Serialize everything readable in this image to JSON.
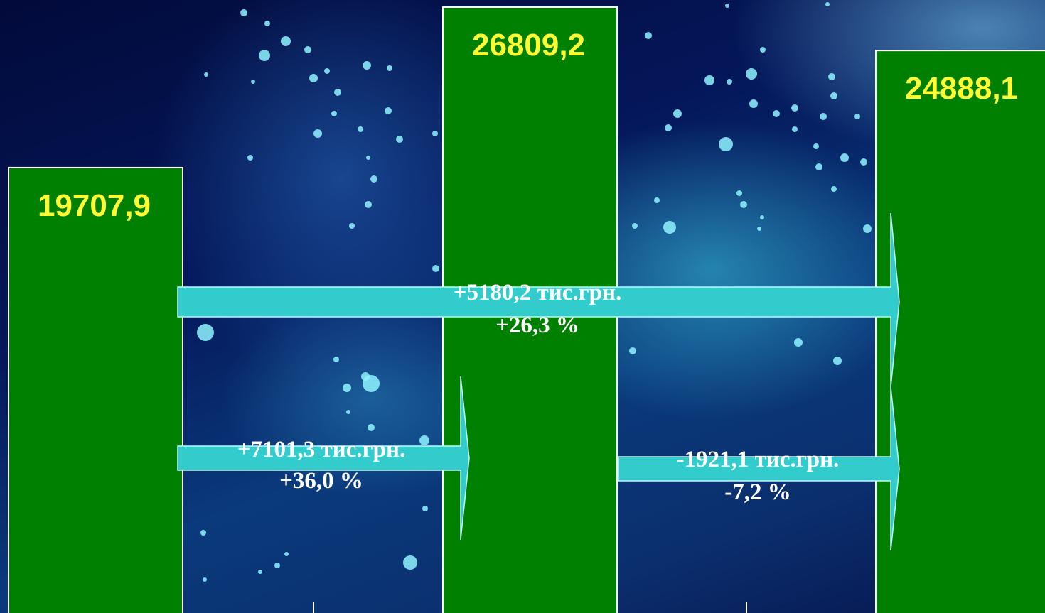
{
  "chart_data": {
    "type": "bar",
    "title": "",
    "xlabel": "",
    "ylabel": "",
    "categories": [
      "",
      "",
      ""
    ],
    "values": [
      19707.9,
      26809.2,
      24888.1
    ],
    "value_labels": [
      "19707,9",
      "26809,2",
      "24888,1"
    ],
    "ylim": [
      0,
      27500
    ],
    "grid": false,
    "colors": {
      "bar": "#008000",
      "bar_border": "#ffffff",
      "value_text": "#ffff33",
      "arrow": "#33cccc",
      "arrow_text": "#ffffff"
    },
    "annotations": [
      {
        "from": 0,
        "to": 1,
        "absolute_change": 7101.3,
        "percent_change": 36.0,
        "label_line1": "+7101,3 тис.грн.",
        "label_line2": "+36,0 %"
      },
      {
        "from": 1,
        "to": 2,
        "absolute_change": -1921.1,
        "percent_change": -7.2,
        "label_line1": "-1921,1 тис.грн.",
        "label_line2": "-7,2 %"
      },
      {
        "from": 0,
        "to": 2,
        "absolute_change": 5180.2,
        "percent_change": 26.3,
        "label_line1": "+5180,2 тис.грн.",
        "label_line2": "+26,3 %"
      }
    ]
  }
}
